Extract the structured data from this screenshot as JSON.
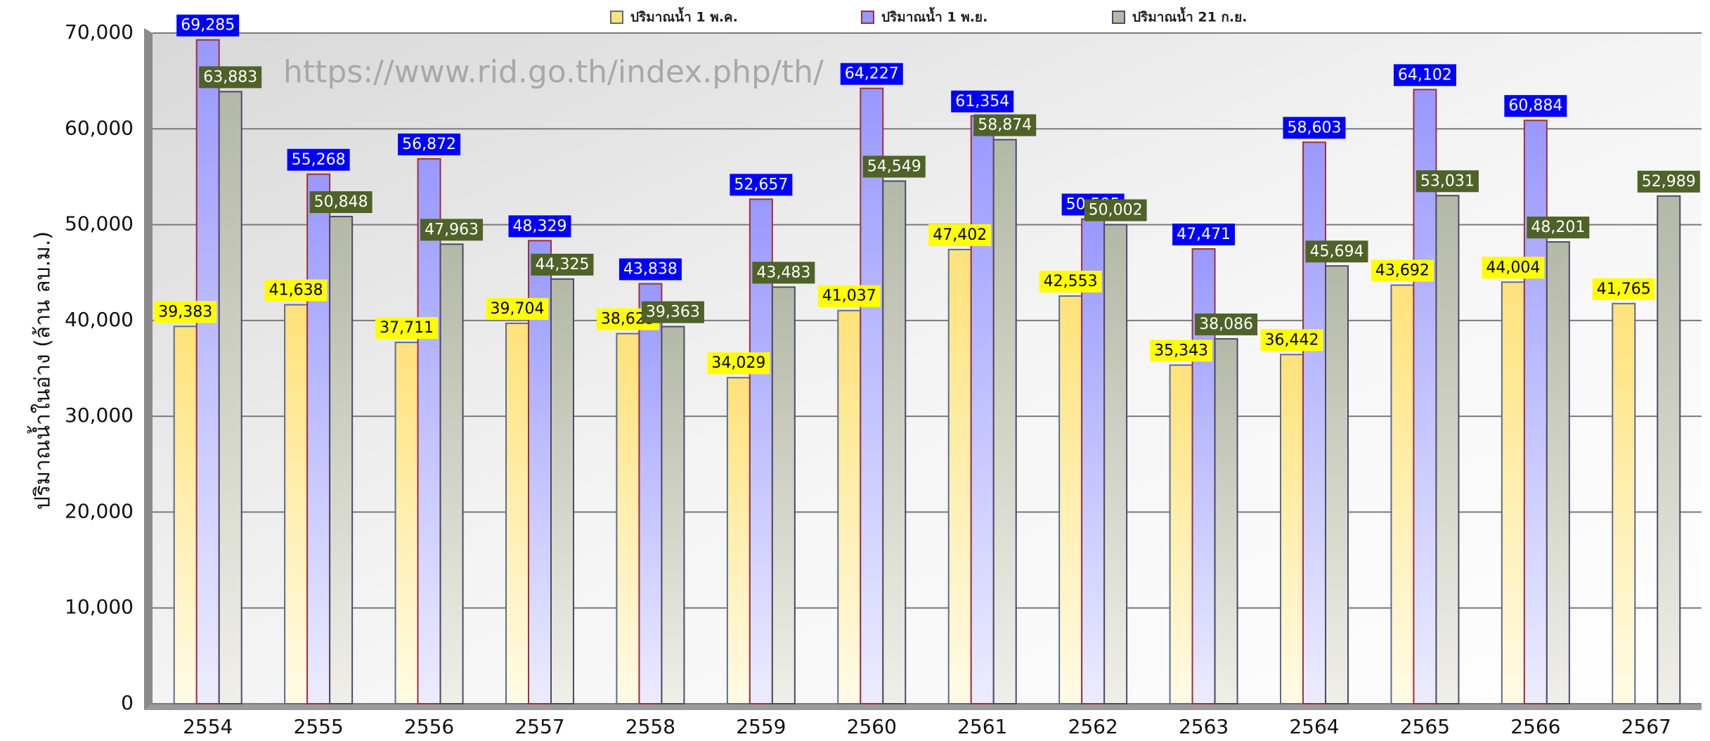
{
  "chart_data": {
    "type": "bar",
    "annotation": "https://www.rid.go.th/index.php/th/",
    "ylabel": "ปริมาณน้ำในอ่าง (ล้าน ลบ.ม.)",
    "categories": [
      "2554",
      "2555",
      "2556",
      "2557",
      "2558",
      "2559",
      "2560",
      "2561",
      "2562",
      "2563",
      "2564",
      "2565",
      "2566",
      "2567"
    ],
    "series": [
      {
        "name": "ปริมาณน้ำ 1 พ.ค.",
        "color": "#ffe27a",
        "values": [
          39383,
          41638,
          37711,
          39704,
          38625,
          34029,
          41037,
          47402,
          42553,
          35343,
          36442,
          43692,
          44004,
          41765
        ],
        "value_labels": [
          "39,383",
          "41,638",
          "37,711",
          "39,704",
          "38,625",
          "34,029",
          "41,037",
          "47,402",
          "42,553",
          "35,343",
          "36,442",
          "43,692",
          "44,004",
          "41,765"
        ]
      },
      {
        "name": "ปริมาณน้ำ 1 พ.ย.",
        "color": "#9898ff",
        "values": [
          69285,
          55268,
          56872,
          48329,
          43838,
          52657,
          64227,
          61354,
          50595,
          47471,
          58603,
          64102,
          60884,
          null
        ],
        "value_labels": [
          "69,285",
          "55,268",
          "56,872",
          "48,329",
          "43,838",
          "52,657",
          "64,227",
          "61,354",
          "50,595",
          "47,471",
          "58,603",
          "64,102",
          "60,884",
          null
        ]
      },
      {
        "name": "ปริมาณน้ำ 21 ก.ย.",
        "color": "#b4b8a6",
        "values": [
          63883,
          50848,
          47963,
          44325,
          39363,
          43483,
          54549,
          58874,
          50002,
          38086,
          45694,
          53031,
          48201,
          52989
        ],
        "value_labels": [
          "63,883",
          "50,848",
          "47,963",
          "44,325",
          "39,363",
          "43,483",
          "54,549",
          "58,874",
          "50,002",
          "38,086",
          "45,694",
          "53,031",
          "48,201",
          "52,989"
        ]
      }
    ],
    "ylim": [
      0,
      70000
    ],
    "yticks": [
      0,
      {
        "value": 10000,
        "label": "10,000"
      },
      {
        "value": 20000,
        "label": "20,000"
      },
      {
        "value": 30000,
        "label": "30,000"
      },
      {
        "value": 40000,
        "label": "40,000"
      },
      {
        "value": 50000,
        "label": "50,000"
      },
      {
        "value": 60000,
        "label": "60,000"
      },
      {
        "value": 70000,
        "label": "70,000"
      }
    ],
    "grid": true
  }
}
